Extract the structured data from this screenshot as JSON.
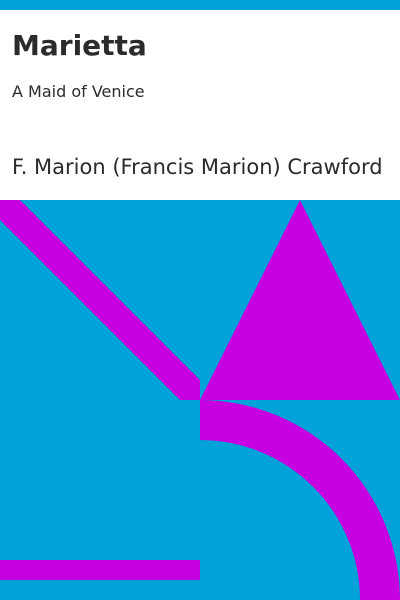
{
  "cover": {
    "title": "Marietta",
    "subtitle": "A Maid of Venice",
    "author": "F. Marion (Francis Marion) Crawford"
  },
  "colors": {
    "background": "#00a2d9",
    "accent": "#c600e0",
    "panel": "#ffffff",
    "text": "#2b2b2b"
  }
}
